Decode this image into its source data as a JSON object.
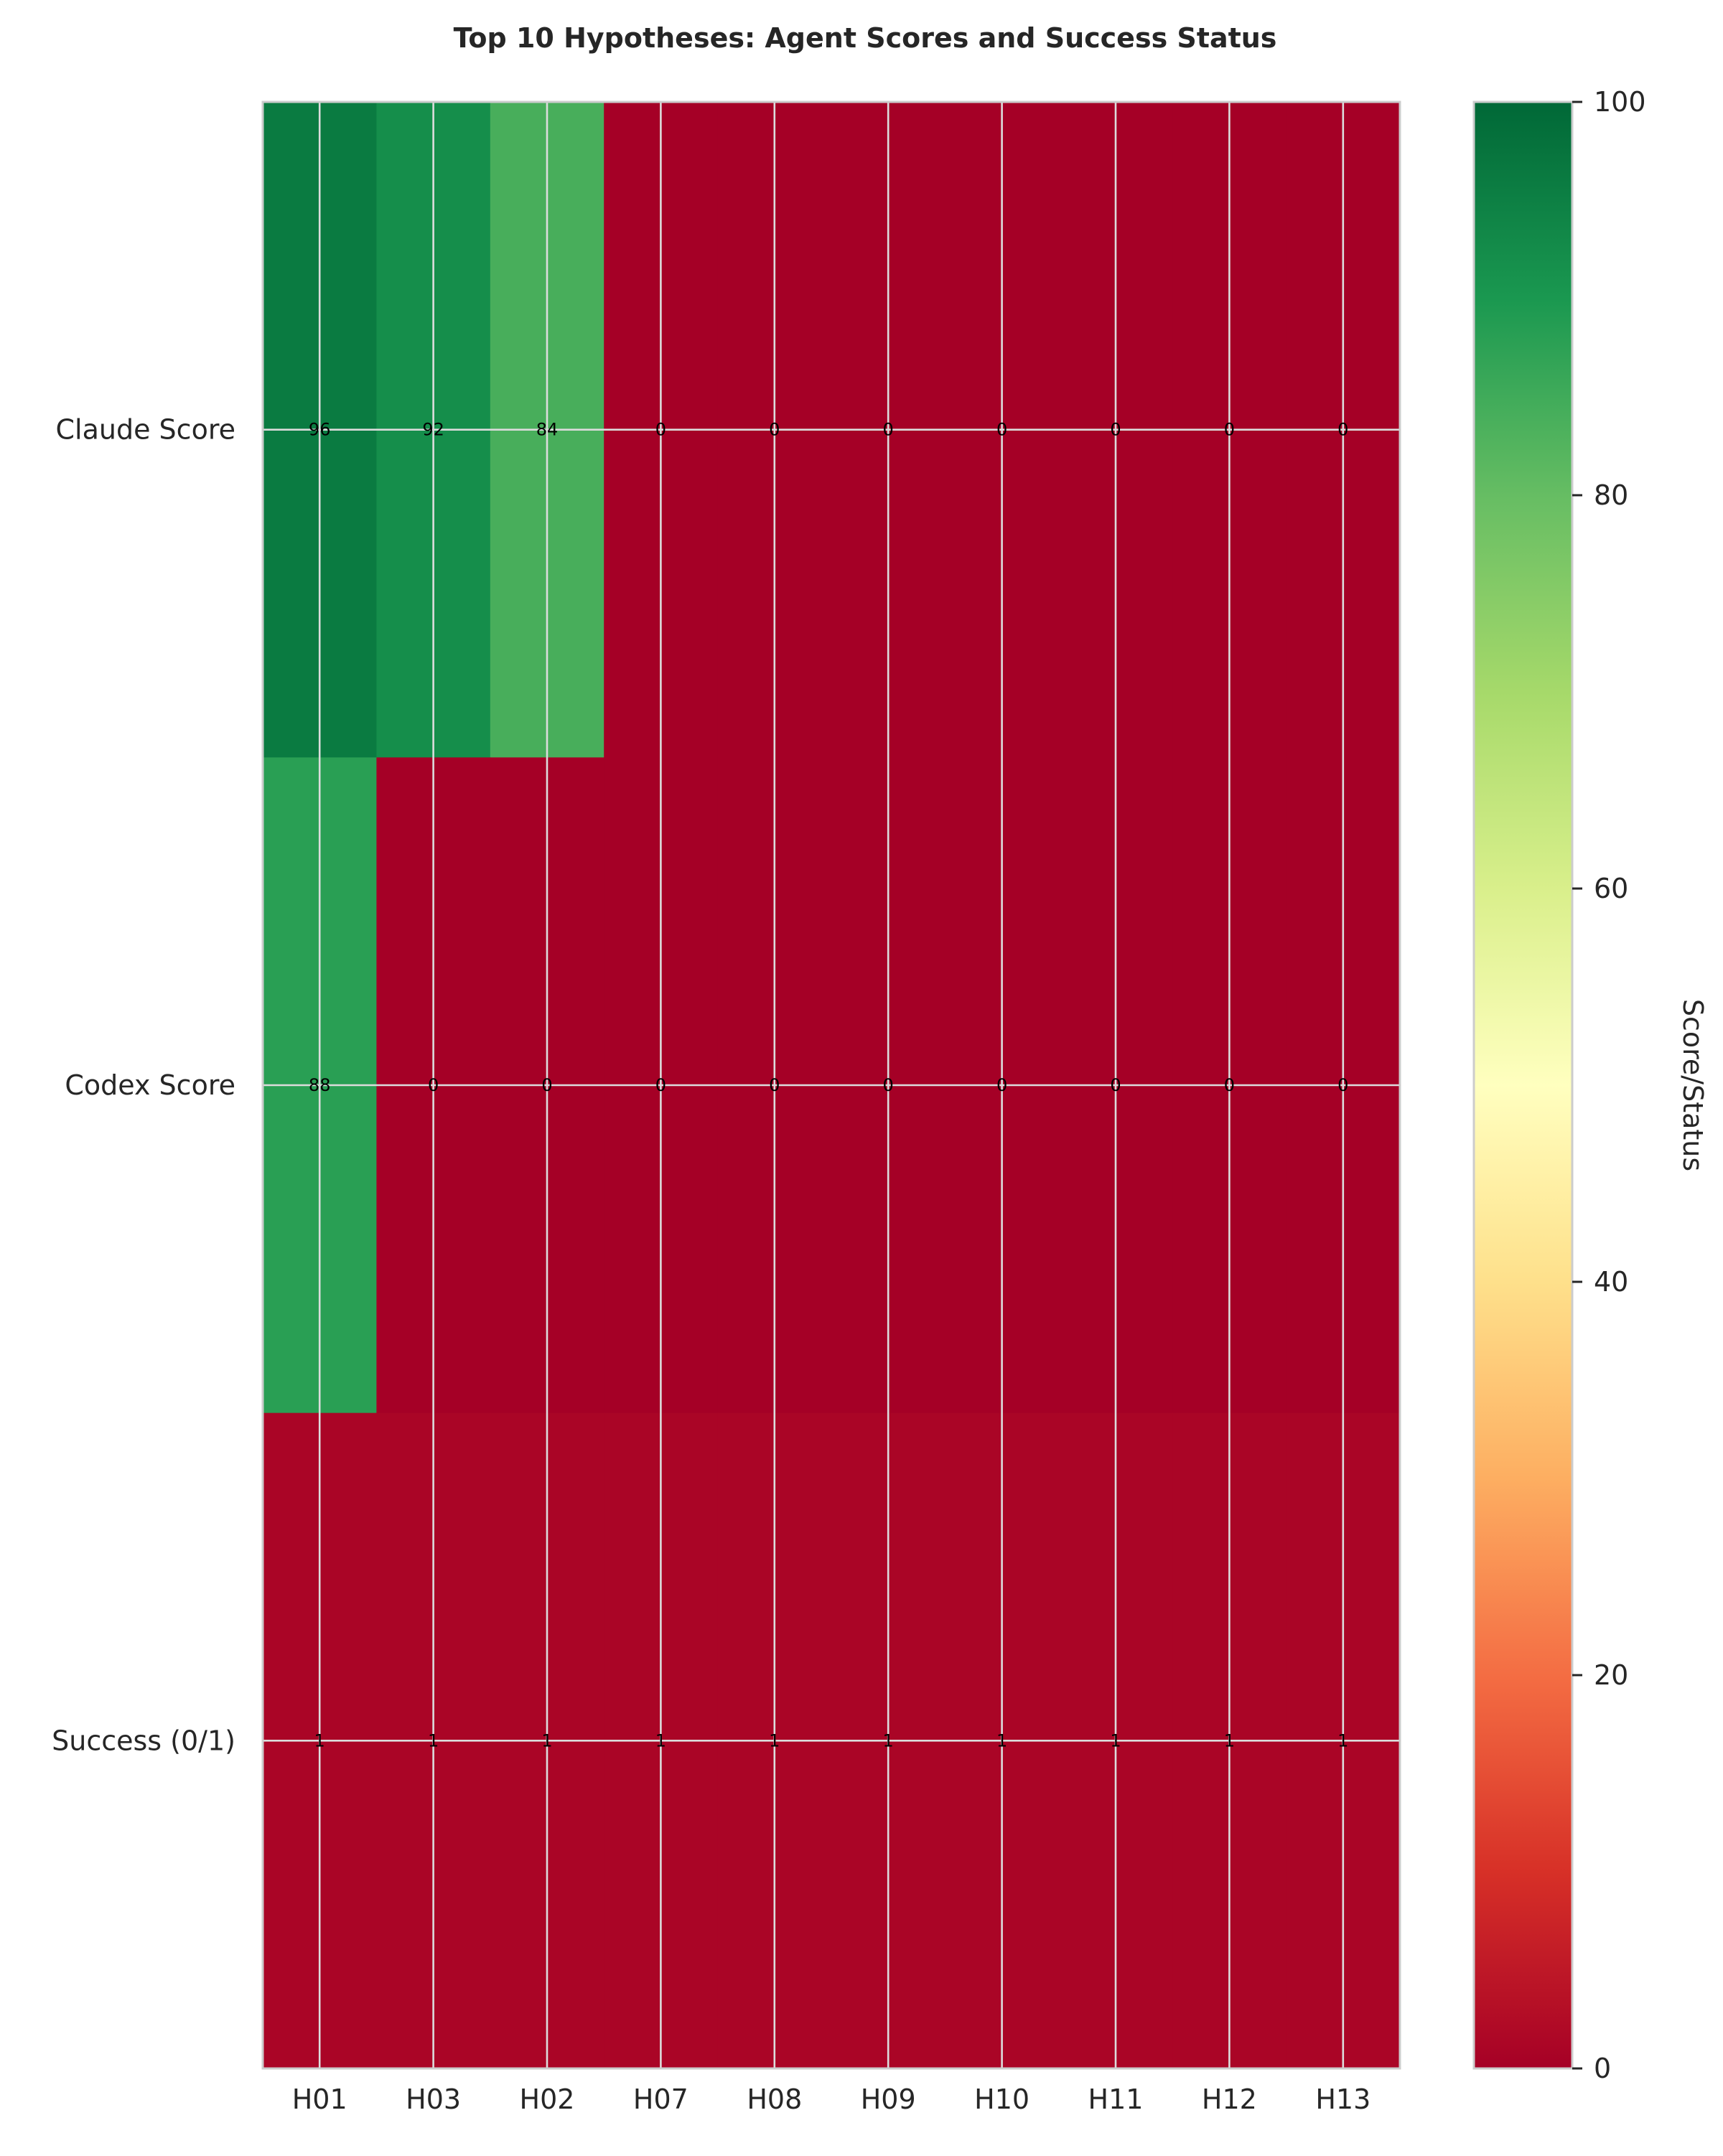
{
  "chart_data": {
    "type": "heatmap",
    "title": "Top 10 Hypotheses: Agent Scores and Success Status",
    "x_categories": [
      "H01",
      "H03",
      "H02",
      "H07",
      "H08",
      "H09",
      "H10",
      "H11",
      "H12",
      "H13"
    ],
    "y_categories": [
      "Claude Score",
      "Codex Score",
      "Success (0/1)"
    ],
    "values": [
      [
        96,
        92,
        84,
        0,
        0,
        0,
        0,
        0,
        0,
        0
      ],
      [
        88,
        0,
        0,
        0,
        0,
        0,
        0,
        0,
        0,
        0
      ],
      [
        1,
        1,
        1,
        1,
        1,
        1,
        1,
        1,
        1,
        1
      ]
    ],
    "colorbar": {
      "label": "Score/Status",
      "range": [
        0,
        100
      ],
      "ticks": [
        0,
        20,
        40,
        60,
        80,
        100
      ],
      "colormap": "RdYlGn"
    },
    "grid": true,
    "colors": {
      "grid": "#dcdcdc",
      "frame": "#cccccc",
      "text": "#262626"
    }
  }
}
